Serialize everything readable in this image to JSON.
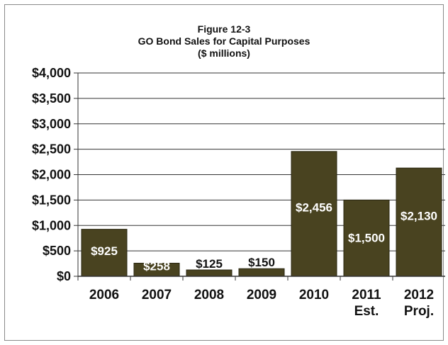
{
  "chart_data": {
    "type": "bar",
    "title_lines": [
      "Figure 12-3",
      "GO Bond Sales for Capital Purposes",
      "($ millions)"
    ],
    "categories": [
      [
        "2006"
      ],
      [
        "2007"
      ],
      [
        "2008"
      ],
      [
        "2009"
      ],
      [
        "2010"
      ],
      [
        "2011",
        "Est."
      ],
      [
        "2012",
        "Proj."
      ]
    ],
    "values": [
      925,
      258,
      125,
      150,
      2456,
      1500,
      2130
    ],
    "data_labels": [
      "$925",
      "$258",
      "$125",
      "$150",
      "$2,456",
      "$1,500",
      "$2,130"
    ],
    "label_inside": [
      true,
      true,
      false,
      false,
      true,
      true,
      true
    ],
    "yticks": [
      0,
      500,
      1000,
      1500,
      2000,
      2500,
      3000,
      3500,
      4000
    ],
    "ytick_labels": [
      "$0",
      "$500",
      "$1,000",
      "$1,500",
      "$2,000",
      "$2,500",
      "$3,000",
      "$3,500",
      "$4,000"
    ],
    "ylim": [
      0,
      4000
    ],
    "xlabel": "",
    "ylabel": "",
    "grid": true,
    "bar_color": "#494320",
    "label_inside_color": "#ffffff",
    "label_outside_color": "#111111"
  }
}
